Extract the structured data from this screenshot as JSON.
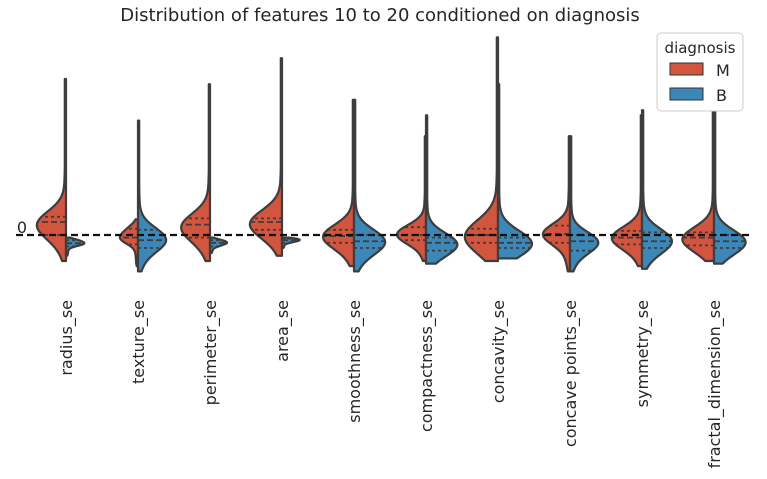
{
  "chart_data": {
    "type": "violin",
    "title": "Distribution of features 10 to 20 conditioned on diagnosis",
    "xlabel": "",
    "ylabel": "",
    "y_tick_labels": [
      "0"
    ],
    "reference_line": 0,
    "categories": [
      "radius_se",
      "texture_se",
      "perimeter_se",
      "area_se",
      "smoothness_se",
      "compactness_se",
      "concavity_se",
      "concave points_se",
      "symmetry_se",
      "fractal_dimension_se"
    ],
    "split": true,
    "inner": "quartile",
    "grid": false,
    "legend": {
      "title": "diagnosis",
      "position": "top-right"
    },
    "series": [
      {
        "name": "M",
        "color": "#d1553f",
        "ranges": [
          [
            -0.5,
            3.0
          ],
          [
            -0.6,
            0.3
          ],
          [
            -0.5,
            2.9
          ],
          [
            -0.4,
            3.4
          ],
          [
            -0.6,
            2.6
          ],
          [
            -0.5,
            1.9
          ],
          [
            -0.5,
            3.8
          ],
          [
            -0.7,
            1.9
          ],
          [
            -0.6,
            2.3
          ],
          [
            -0.5,
            2.6
          ]
        ],
        "quartiles": [
          [
            0.0,
            0.25,
            0.35
          ],
          [
            -0.18,
            -0.05,
            0.12
          ],
          [
            -0.05,
            0.2,
            0.32
          ],
          [
            0.1,
            0.25,
            0.32
          ],
          [
            -0.15,
            -0.02,
            0.1
          ],
          [
            -0.1,
            0.0,
            0.15
          ],
          [
            -0.15,
            0.0,
            0.12
          ],
          [
            -0.15,
            0.02,
            0.18
          ],
          [
            -0.18,
            -0.05,
            0.08
          ],
          [
            -0.2,
            -0.05,
            0.05
          ]
        ]
      },
      {
        "name": "B",
        "color": "#3b87b8",
        "ranges": [
          [
            -0.4,
            -0.05
          ],
          [
            -0.7,
            2.2
          ],
          [
            -0.35,
            -0.05
          ],
          [
            -0.25,
            -0.05
          ],
          [
            -0.7,
            2.6
          ],
          [
            -0.55,
            2.3
          ],
          [
            -0.45,
            2.9
          ],
          [
            -0.7,
            1.9
          ],
          [
            -0.65,
            2.4
          ],
          [
            -0.55,
            2.5
          ]
        ],
        "quartiles": [
          [
            -0.22,
            -0.16,
            -0.1
          ],
          [
            -0.25,
            -0.1,
            0.1
          ],
          [
            -0.22,
            -0.15,
            -0.1
          ],
          [
            -0.15,
            -0.1,
            -0.07
          ],
          [
            -0.25,
            -0.12,
            0.0
          ],
          [
            -0.3,
            -0.15,
            -0.05
          ],
          [
            -0.25,
            -0.15,
            -0.05
          ],
          [
            -0.3,
            -0.12,
            0.0
          ],
          [
            -0.25,
            -0.12,
            0.05
          ],
          [
            -0.25,
            -0.12,
            0.0
          ]
        ]
      }
    ]
  }
}
